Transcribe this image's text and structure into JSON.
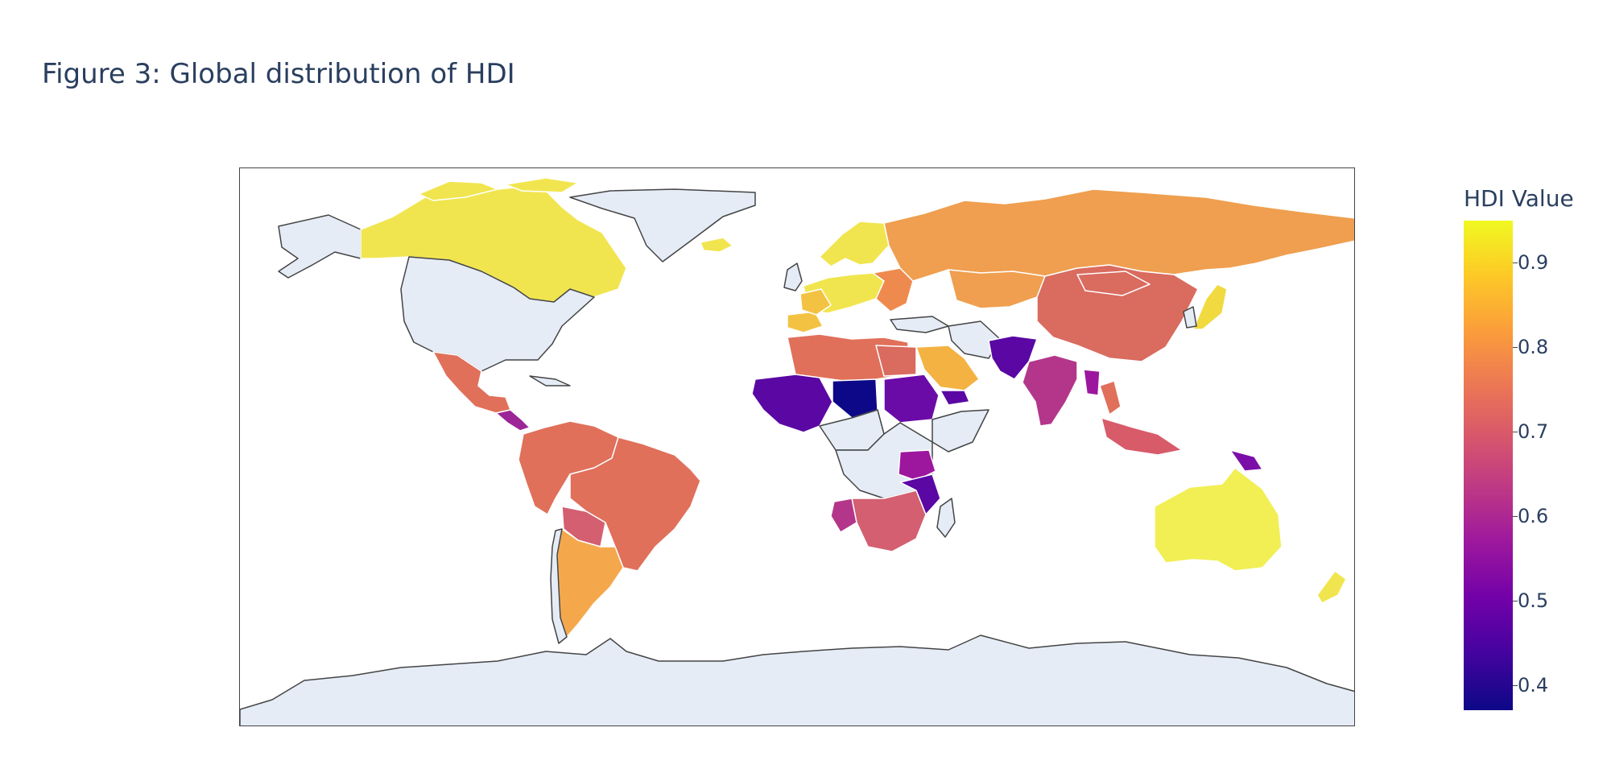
{
  "figure": {
    "title": "Figure 3: Global distribution of HDI"
  },
  "colorbar": {
    "title": "HDI Value",
    "range": [
      0.37,
      0.95
    ],
    "ticks": [
      "0.9",
      "0.8",
      "0.7",
      "0.6",
      "0.5",
      "0.4"
    ],
    "tick_values": [
      0.9,
      0.8,
      0.7,
      0.6,
      0.5,
      0.4
    ],
    "colorscale": [
      "#0d0887",
      "#46039f",
      "#7201a8",
      "#9c179e",
      "#bd3786",
      "#d8576b",
      "#ed7953",
      "#fb9f3a",
      "#fdca26",
      "#f0f921"
    ]
  },
  "colors": {
    "no_data": "#e5ecf6",
    "country_border": "#ffffff",
    "coastline": "#444444"
  },
  "chart_data": {
    "type": "choropleth",
    "projection": "equirectangular",
    "value_label": "HDI Value",
    "regions": [
      {
        "name": "Canada",
        "value": 0.93
      },
      {
        "name": "Greenland",
        "value": null
      },
      {
        "name": "Alaska",
        "value": null
      },
      {
        "name": "United States",
        "value": null
      },
      {
        "name": "Mexico",
        "value": 0.76
      },
      {
        "name": "Brazil",
        "value": 0.76
      },
      {
        "name": "Argentina",
        "value": 0.84
      },
      {
        "name": "Russia",
        "value": 0.82
      },
      {
        "name": "China",
        "value": 0.76
      },
      {
        "name": "India",
        "value": 0.63
      },
      {
        "name": "Australia",
        "value": 0.95
      },
      {
        "name": "Nordic countries",
        "value": 0.95
      },
      {
        "name": "Western Europe",
        "value": 0.92
      },
      {
        "name": "North Africa",
        "value": 0.73
      },
      {
        "name": "Saudi Arabia",
        "value": 0.87
      },
      {
        "name": "Niger",
        "value": 0.39
      },
      {
        "name": "Sahel West Africa",
        "value": 0.45
      },
      {
        "name": "Sudan",
        "value": 0.5
      },
      {
        "name": "Southern Africa",
        "value": 0.7
      },
      {
        "name": "Mozambique",
        "value": 0.45
      },
      {
        "name": "Pakistan / Afghanistan",
        "value": 0.5
      },
      {
        "name": "Indonesia",
        "value": 0.7
      },
      {
        "name": "Japan",
        "value": 0.92
      },
      {
        "name": "New Zealand",
        "value": 0.93
      },
      {
        "name": "Antarctica",
        "value": null
      }
    ]
  }
}
